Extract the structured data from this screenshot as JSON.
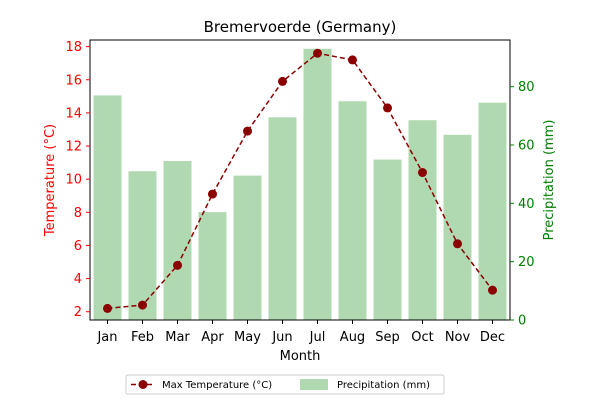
{
  "chart_data": {
    "type": "bar+line",
    "title": "Bremervoerde (Germany)",
    "xlabel": "Month",
    "categories": [
      "Jan",
      "Feb",
      "Mar",
      "Apr",
      "May",
      "Jun",
      "Jul",
      "Aug",
      "Sep",
      "Oct",
      "Nov",
      "Dec"
    ],
    "y_left": {
      "label": "Temperature (°C)",
      "range": [
        1.5,
        18.4
      ],
      "ticks": [
        "2",
        "4",
        "6",
        "8",
        "10",
        "12",
        "14",
        "16",
        "18"
      ],
      "color": "#ff0000"
    },
    "y_right": {
      "label": "Precipitation (mm)",
      "range": [
        0,
        96
      ],
      "ticks": [
        "0",
        "20",
        "40",
        "60",
        "80"
      ],
      "color": "#008000"
    },
    "series": [
      {
        "name": "Max Temperature (°C)",
        "type": "line",
        "axis": "left",
        "color": "#8b0000",
        "style": "dashed",
        "marker": "circle",
        "values": [
          2.2,
          2.4,
          4.8,
          9.1,
          12.9,
          15.9,
          17.6,
          17.2,
          14.3,
          10.4,
          6.1,
          3.3
        ]
      },
      {
        "name": "Precipitation (mm)",
        "type": "bar",
        "axis": "right",
        "color": "#b1d9b1",
        "values": [
          77,
          51,
          54.5,
          37,
          49.5,
          69.5,
          93,
          75,
          55,
          68.5,
          63.5,
          74.5
        ]
      }
    ],
    "legend": {
      "placement": "bottom-center",
      "items": [
        "Max Temperature (°C)",
        "Precipitation (mm)"
      ]
    }
  }
}
